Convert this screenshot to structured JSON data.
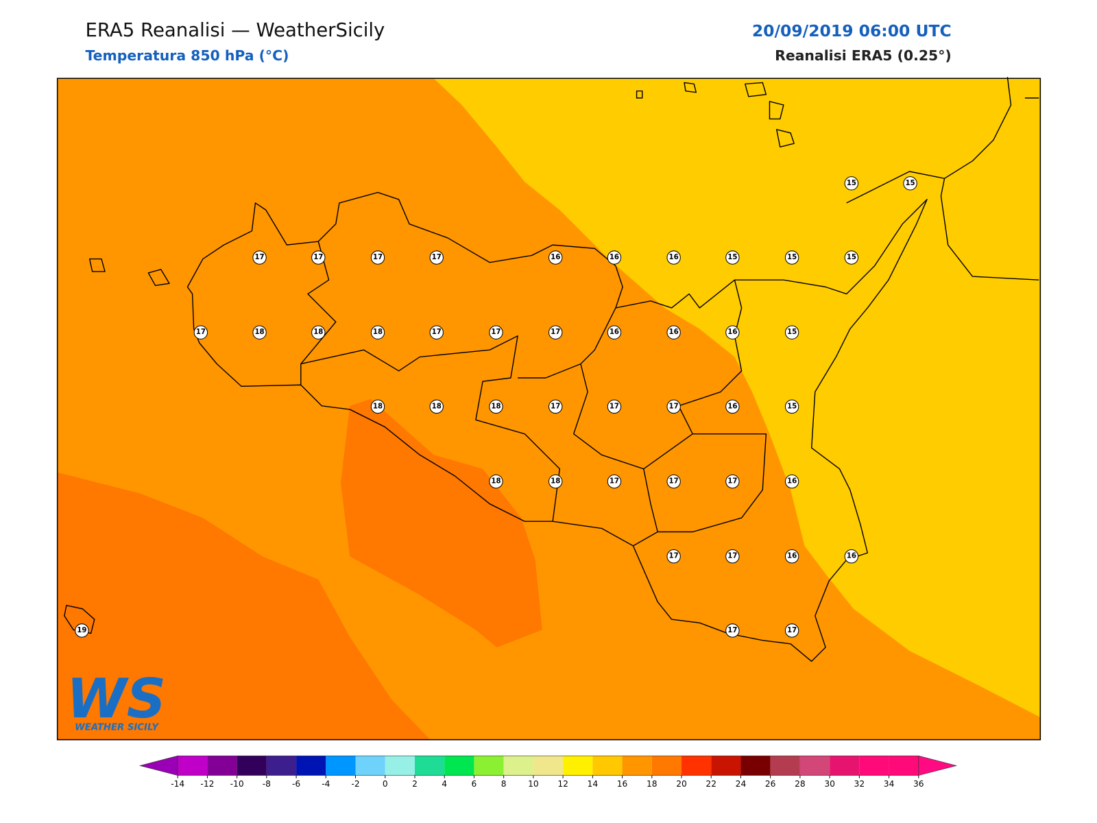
{
  "header": {
    "title": "ERA5 Reanalisi — WeatherSicily",
    "subtitle": "Temperatura 850 hPa (°C)",
    "date": "20/09/2019 06:00 UTC",
    "model": "Reanalisi ERA5 (0.25°)"
  },
  "station_values": [
    15,
    15,
    17,
    17,
    17,
    17,
    16,
    16,
    16,
    15,
    15,
    15,
    17,
    18,
    18,
    18,
    17,
    17,
    17,
    16,
    16,
    16,
    15,
    18,
    18,
    18,
    17,
    17,
    17,
    16,
    15,
    18,
    18,
    17,
    17,
    17,
    16,
    17,
    17,
    16,
    16,
    19,
    17,
    17
  ],
  "colorbar": {
    "ticks": [
      -14,
      -12,
      -10,
      -8,
      -6,
      -4,
      -2,
      0,
      2,
      4,
      6,
      8,
      10,
      12,
      14,
      16,
      18,
      20,
      22,
      24,
      26,
      28,
      30,
      32,
      34,
      36
    ],
    "colors": [
      "#c000c8",
      "#820096",
      "#32005a",
      "#3c1e8c",
      "#0014b4",
      "#0096ff",
      "#6ed2fa",
      "#96f0e6",
      "#1edc96",
      "#00e650",
      "#8cf032",
      "#dcf08c",
      "#f0e68c",
      "#fff000",
      "#ffc800",
      "#ff9600",
      "#ff7800",
      "#ff3200",
      "#c81400",
      "#780000",
      "#b43c50",
      "#d24678",
      "#e6146e",
      "#ff0a78",
      "#ff0a78"
    ],
    "under": "#9a00b5",
    "over": "#ff0a82"
  },
  "logo": {
    "mark": "WS",
    "name": "WEATHER SICILY"
  }
}
